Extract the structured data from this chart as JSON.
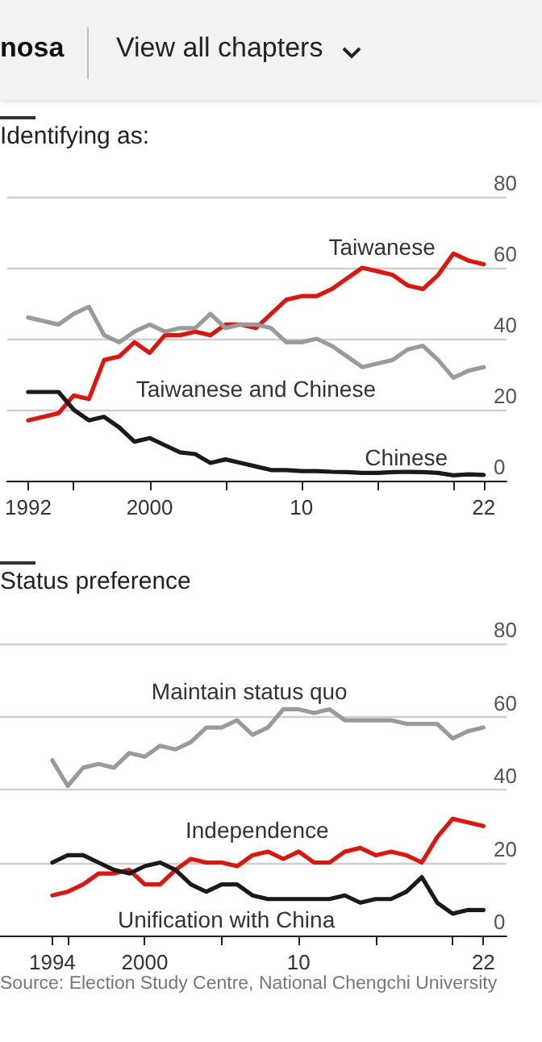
{
  "chart_data": [
    {
      "type": "line",
      "title": "Identifying as:",
      "annotations": [
        "nosa",
        "View all chapters"
      ],
      "x": [
        1992,
        1994,
        1995,
        1996,
        1997,
        1998,
        1999,
        2000,
        2001,
        2002,
        2003,
        2004,
        2005,
        2006,
        2007,
        2008,
        2009,
        2010,
        2011,
        2012,
        2013,
        2014,
        2015,
        2016,
        2017,
        2018,
        2019,
        2020,
        2021,
        2022
      ],
      "xlim": [
        1990.6,
        2023.5
      ],
      "xticks": [
        1992,
        {
          "value": 1995,
          "label": null
        },
        2000,
        {
          "value": 2005,
          "label": null
        },
        {
          "value": 2010,
          "label": "10"
        },
        {
          "value": 2015,
          "label": null
        },
        {
          "value": 2020,
          "label": null
        },
        {
          "value": 2022,
          "label": "22"
        }
      ],
      "ylim": [
        0,
        80
      ],
      "yticks": [
        0,
        20,
        40,
        60,
        80
      ],
      "grid": "y",
      "legend": false,
      "marker": "none",
      "line_style": "solid",
      "series": [
        {
          "name": "Taiwanese",
          "color": "#e3120b",
          "values": [
            17,
            19,
            24,
            23,
            34,
            35,
            39,
            36,
            41,
            41,
            42,
            41,
            44,
            44,
            43,
            47,
            51,
            52,
            52,
            54,
            57,
            60,
            59,
            58,
            55,
            54,
            58,
            64,
            62,
            61
          ]
        },
        {
          "name": "Taiwanese and Chinese",
          "color": "#9a9a9a",
          "values": [
            46,
            44,
            47,
            49,
            41,
            39,
            42,
            44,
            42,
            43,
            43,
            47,
            43,
            44,
            44,
            43,
            39,
            39,
            40,
            38,
            35,
            32,
            33,
            34,
            37,
            38,
            34,
            29,
            31,
            32
          ]
        },
        {
          "name": "Chinese",
          "color": "#1a1a1a",
          "values": [
            25,
            25,
            20,
            17,
            18,
            15,
            11,
            12,
            10,
            8,
            7.5,
            5,
            6,
            5,
            4,
            3,
            3,
            2.7,
            2.7,
            2.5,
            2.4,
            2.2,
            2.2,
            2.4,
            2.5,
            2.4,
            2.2,
            1.5,
            1.8,
            1.6
          ]
        }
      ]
    },
    {
      "type": "line",
      "title": "Status preference",
      "annotations": [
        "Source: Election Study Centre, National Chengchi University"
      ],
      "x": [
        1994,
        1995,
        1996,
        1997,
        1998,
        1999,
        2000,
        2001,
        2002,
        2003,
        2004,
        2005,
        2006,
        2007,
        2008,
        2009,
        2010,
        2011,
        2012,
        2013,
        2014,
        2015,
        2016,
        2017,
        2018,
        2019,
        2020,
        2021,
        2022
      ],
      "xlim": [
        1990.6,
        2023.5
      ],
      "xticks": [
        1994,
        {
          "value": 1995,
          "label": null
        },
        2000,
        {
          "value": 2005,
          "label": null
        },
        {
          "value": 2010,
          "label": "10"
        },
        {
          "value": 2015,
          "label": null
        },
        {
          "value": 2020,
          "label": null
        },
        {
          "value": 2022,
          "label": "22"
        }
      ],
      "ylim": [
        0,
        80
      ],
      "yticks": [
        0,
        20,
        40,
        60,
        80
      ],
      "grid": "y",
      "legend": false,
      "marker": "none",
      "line_style": "solid",
      "series": [
        {
          "name": "Maintain status quo",
          "color": "#9a9a9a",
          "values": [
            48,
            41,
            46,
            47,
            46,
            50,
            49,
            52,
            51,
            53,
            57,
            57,
            59,
            55,
            57,
            62,
            62,
            61,
            62,
            59,
            59,
            59,
            59,
            58,
            58,
            58,
            54,
            56,
            57
          ]
        },
        {
          "name": "Independence",
          "color": "#e3120b",
          "values": [
            11,
            12,
            14,
            17,
            17,
            18,
            14,
            14,
            18,
            21,
            20,
            20,
            19,
            22,
            23,
            21,
            23,
            20,
            20,
            23,
            24,
            22,
            23,
            22,
            20,
            27,
            32,
            31,
            30
          ]
        },
        {
          "name": "Unification with China",
          "color": "#1a1a1a",
          "values": [
            20,
            22,
            22,
            20,
            18,
            17,
            19,
            20,
            18,
            14,
            12,
            14,
            14,
            11,
            10,
            10,
            10,
            10,
            10,
            11,
            9,
            10,
            10,
            12,
            16,
            9,
            6,
            7,
            7
          ]
        }
      ]
    }
  ]
}
